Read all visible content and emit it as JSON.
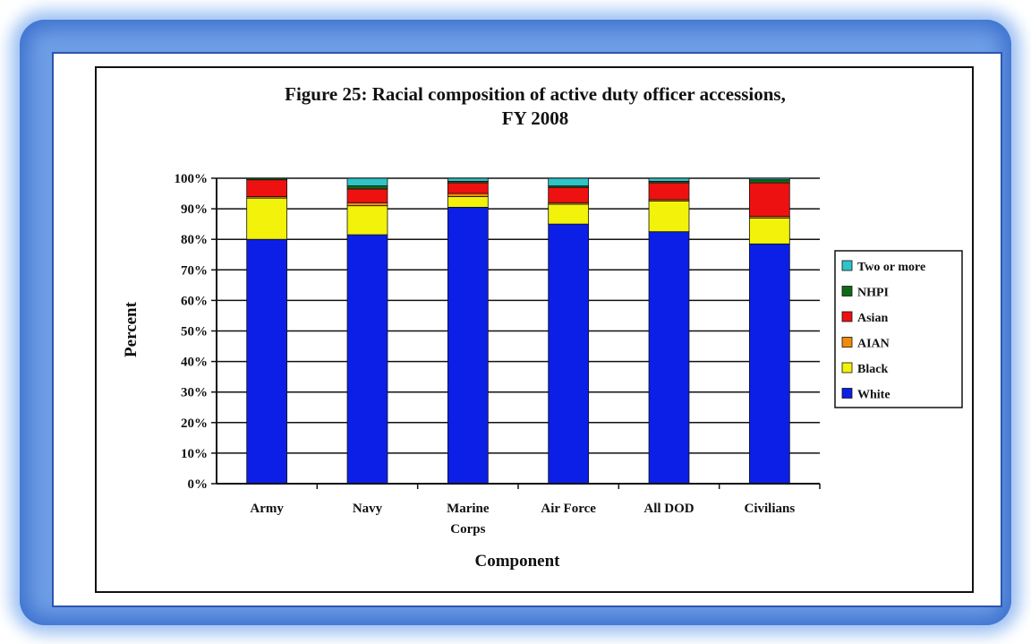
{
  "chart_data": {
    "type": "bar",
    "stacked": true,
    "title_line1": "Figure 25: Racial composition of active duty officer accessions,",
    "title_line2": "FY 2008",
    "xlabel": "Component",
    "ylabel": "Percent",
    "ylim": [
      0,
      100
    ],
    "y_ticks": [
      "0%",
      "10%",
      "20%",
      "30%",
      "40%",
      "50%",
      "60%",
      "70%",
      "80%",
      "90%",
      "100%"
    ],
    "categories": [
      [
        "Army"
      ],
      [
        "Navy"
      ],
      [
        "Marine",
        "Corps"
      ],
      [
        "Air Force"
      ],
      [
        "All DOD"
      ],
      [
        "Civilians"
      ]
    ],
    "series": [
      {
        "name": "White",
        "color": "#0b1fe6",
        "values": [
          80,
          81.5,
          90.5,
          85,
          82.5,
          78.5
        ]
      },
      {
        "name": "Black",
        "color": "#f2f20a",
        "values": [
          13.5,
          9.5,
          3.5,
          6.5,
          10,
          8.5
        ]
      },
      {
        "name": "AIAN",
        "color": "#f28a0c",
        "values": [
          0.5,
          1,
          1,
          0.5,
          0.5,
          0.5
        ]
      },
      {
        "name": "Asian",
        "color": "#ee1111",
        "values": [
          5.5,
          4.5,
          3.5,
          5,
          5.5,
          11
        ]
      },
      {
        "name": "NHPI",
        "color": "#0e6b14",
        "values": [
          0.5,
          1,
          0.5,
          0.5,
          0.5,
          1
        ]
      },
      {
        "name": "Two or more",
        "color": "#2ec4c8",
        "values": [
          0,
          2.5,
          1,
          2.5,
          1,
          0.5
        ]
      }
    ],
    "legend_order": [
      "Two or more",
      "NHPI",
      "Asian",
      "AIAN",
      "Black",
      "White"
    ],
    "legend_position": "right",
    "grid": true
  }
}
